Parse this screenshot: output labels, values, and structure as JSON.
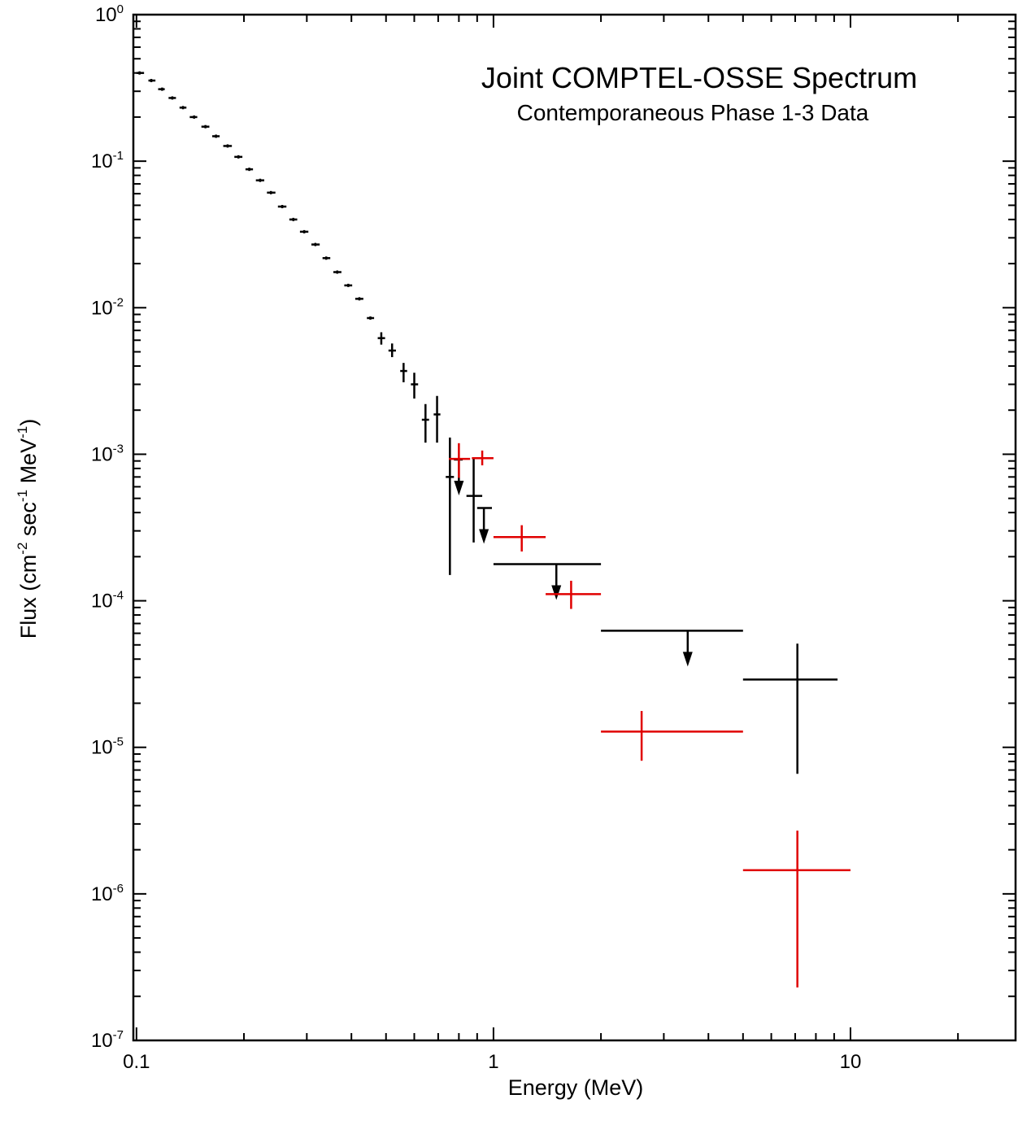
{
  "chart_data": {
    "type": "scatter",
    "title": "Joint COMPTEL-OSSE Spectrum",
    "subtitle": "Contemporaneous Phase 1-3 Data",
    "xlabel": "Energy (MeV)",
    "ylabel": {
      "prefix": "Flux (cm",
      "exp1": "-2",
      "mid": " sec",
      "exp2": "-1",
      "mid2": " MeV",
      "exp3": "-1",
      "suffix": ")"
    },
    "x_scale": "log",
    "y_scale": "log",
    "xlim": [
      0.098,
      29
    ],
    "ylim": [
      1e-07,
      1.0
    ],
    "grid": false,
    "x_ticks": [
      {
        "value": 0.1,
        "label": "0.1"
      },
      {
        "value": 1,
        "label": "1"
      },
      {
        "value": 10,
        "label": "10"
      }
    ],
    "y_ticks": [
      {
        "value": 1,
        "base": "10",
        "exp": "0"
      },
      {
        "value": 0.1,
        "base": "10",
        "exp": "-1"
      },
      {
        "value": 0.01,
        "base": "10",
        "exp": "-2"
      },
      {
        "value": 0.001,
        "base": "10",
        "exp": "-3"
      },
      {
        "value": 0.0001,
        "base": "10",
        "exp": "-4"
      },
      {
        "value": 1e-05,
        "base": "10",
        "exp": "-5"
      },
      {
        "value": 1e-06,
        "base": "10",
        "exp": "-6"
      },
      {
        "value": 1e-07,
        "base": "10",
        "exp": "-7"
      }
    ],
    "colors": {
      "black_series": "#000000",
      "red_series": "#e00000"
    },
    "series": [
      {
        "color": "#000000",
        "points": [
          {
            "x": 0.102,
            "xlo": 0.1,
            "xhi": 0.105,
            "y": 0.4
          },
          {
            "x": 0.11,
            "xlo": 0.108,
            "xhi": 0.113,
            "y": 0.355
          },
          {
            "x": 0.118,
            "xlo": 0.115,
            "xhi": 0.12,
            "y": 0.31
          },
          {
            "x": 0.126,
            "xlo": 0.123,
            "xhi": 0.129,
            "y": 0.27
          },
          {
            "x": 0.135,
            "xlo": 0.132,
            "xhi": 0.138,
            "y": 0.232
          },
          {
            "x": 0.145,
            "xlo": 0.141,
            "xhi": 0.148,
            "y": 0.2
          },
          {
            "x": 0.156,
            "xlo": 0.152,
            "xhi": 0.16,
            "y": 0.172
          },
          {
            "x": 0.167,
            "xlo": 0.163,
            "xhi": 0.171,
            "y": 0.148
          },
          {
            "x": 0.18,
            "xlo": 0.175,
            "xhi": 0.185,
            "y": 0.127
          },
          {
            "x": 0.193,
            "xlo": 0.188,
            "xhi": 0.198,
            "y": 0.107
          },
          {
            "x": 0.207,
            "xlo": 0.202,
            "xhi": 0.212,
            "y": 0.088
          },
          {
            "x": 0.222,
            "xlo": 0.216,
            "xhi": 0.228,
            "y": 0.074
          },
          {
            "x": 0.238,
            "xlo": 0.232,
            "xhi": 0.245,
            "y": 0.061
          },
          {
            "x": 0.256,
            "xlo": 0.249,
            "xhi": 0.263,
            "y": 0.049
          },
          {
            "x": 0.275,
            "xlo": 0.268,
            "xhi": 0.282,
            "y": 0.04
          },
          {
            "x": 0.295,
            "xlo": 0.287,
            "xhi": 0.303,
            "y": 0.033
          },
          {
            "x": 0.317,
            "xlo": 0.309,
            "xhi": 0.326,
            "y": 0.027
          },
          {
            "x": 0.34,
            "xlo": 0.332,
            "xhi": 0.349,
            "y": 0.0218
          },
          {
            "x": 0.365,
            "xlo": 0.356,
            "xhi": 0.375,
            "y": 0.0175
          },
          {
            "x": 0.392,
            "xlo": 0.382,
            "xhi": 0.402,
            "y": 0.0142
          },
          {
            "x": 0.421,
            "xlo": 0.41,
            "xhi": 0.432,
            "y": 0.0115
          },
          {
            "x": 0.452,
            "xlo": 0.442,
            "xhi": 0.463,
            "y": 0.0085
          },
          {
            "x": 0.485,
            "ylo": 0.0056,
            "yhi": 0.0068,
            "xlo": 0.474,
            "xhi": 0.497,
            "y": 0.0062
          },
          {
            "x": 0.52,
            "ylo": 0.0046,
            "yhi": 0.0057,
            "xlo": 0.508,
            "xhi": 0.533,
            "y": 0.0051
          },
          {
            "x": 0.56,
            "ylo": 0.0031,
            "yhi": 0.0042,
            "xlo": 0.548,
            "xhi": 0.573,
            "y": 0.0037
          },
          {
            "x": 0.6,
            "ylo": 0.0024,
            "yhi": 0.0036,
            "xlo": 0.587,
            "xhi": 0.615,
            "y": 0.003
          },
          {
            "x": 0.645,
            "ylo": 0.0012,
            "yhi": 0.0022,
            "xlo": 0.63,
            "xhi": 0.66,
            "y": 0.00172
          },
          {
            "x": 0.695,
            "ylo": 0.0012,
            "yhi": 0.0025,
            "xlo": 0.68,
            "xhi": 0.71,
            "y": 0.00187
          },
          {
            "x": 0.755,
            "ylo": 0.00015,
            "yhi": 0.0013,
            "xlo": 0.735,
            "xhi": 0.775,
            "y": 0.0007
          },
          {
            "x": 0.88,
            "ylo": 0.00025,
            "yhi": 0.00093,
            "xlo": 0.84,
            "xhi": 0.93,
            "y": 0.00052
          }
        ]
      },
      {
        "color": "#000000",
        "upper_limit": true,
        "points": [
          {
            "x": 0.8,
            "xlo": 0.775,
            "xhi": 0.82,
            "y": 0.00092
          },
          {
            "x": 0.94,
            "xlo": 0.9,
            "xhi": 0.99,
            "y": 0.00043
          },
          {
            "x": 1.5,
            "xlo": 1.0,
            "xhi": 2.0,
            "y": 0.000178
          },
          {
            "x": 3.5,
            "xlo": 2.0,
            "xhi": 5.0,
            "y": 6.25e-05
          }
        ]
      },
      {
        "color": "#000000",
        "points": [
          {
            "x": 7.1,
            "xlo": 5.0,
            "xhi": 9.2,
            "y": 2.9e-05,
            "ylo": 6.6e-06,
            "yhi": 5.1e-05
          }
        ]
      },
      {
        "color": "#e00000",
        "points": [
          {
            "x": 0.8,
            "xlo": 0.75,
            "xhi": 0.86,
            "y": 0.00093,
            "ylo": 0.00069,
            "yhi": 0.00119
          },
          {
            "x": 0.93,
            "xlo": 0.87,
            "xhi": 1.0,
            "y": 0.00094,
            "ylo": 0.00084,
            "yhi": 0.00106
          },
          {
            "x": 1.2,
            "xlo": 1.0,
            "xhi": 1.4,
            "y": 0.000272,
            "ylo": 0.000217,
            "yhi": 0.000328
          },
          {
            "x": 1.65,
            "xlo": 1.4,
            "xhi": 2.0,
            "y": 0.000111,
            "ylo": 8.8e-05,
            "yhi": 0.000137
          },
          {
            "x": 2.6,
            "xlo": 2.0,
            "xhi": 5.0,
            "y": 1.28e-05,
            "ylo": 8.1e-06,
            "yhi": 1.77e-05
          },
          {
            "x": 7.1,
            "xlo": 5.0,
            "xhi": 10.0,
            "y": 1.45e-06,
            "ylo": 2.3e-07,
            "yhi": 2.7e-06
          }
        ]
      }
    ]
  }
}
